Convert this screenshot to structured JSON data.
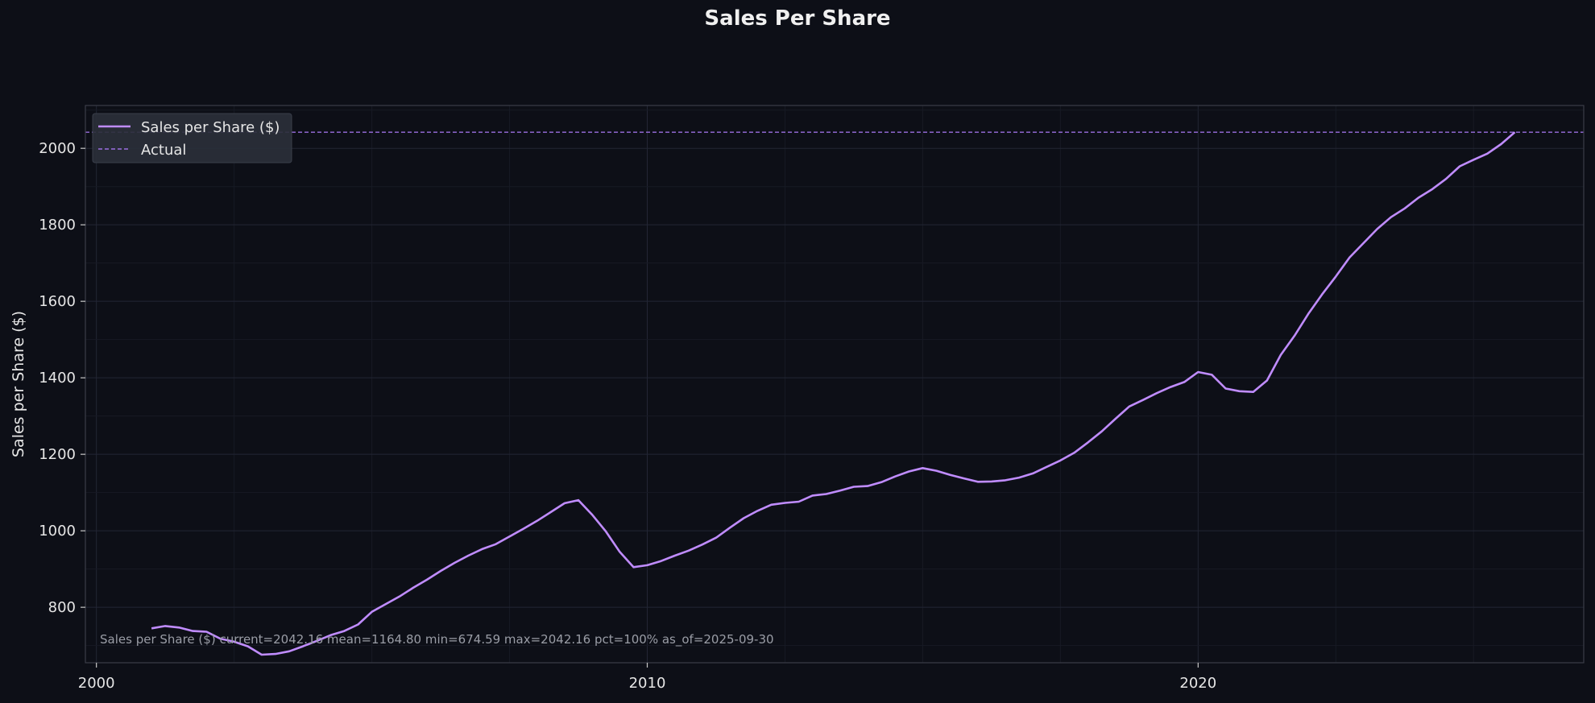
{
  "chart_data": {
    "type": "line",
    "title": "Sales Per Share",
    "xlabel": "",
    "ylabel": "Sales per Share ($)",
    "xlim": [
      1999.8,
      2027.0
    ],
    "ylim": [
      655,
      2112
    ],
    "x_ticks": [
      2000,
      2010,
      2020
    ],
    "x_tick_labels": [
      "2000",
      "2010",
      "2020"
    ],
    "y_ticks": [
      800,
      1000,
      1200,
      1400,
      1600,
      1800,
      2000
    ],
    "y_tick_labels": [
      "800",
      "1000",
      "1200",
      "1400",
      "1600",
      "1800",
      "2000"
    ],
    "grid": true,
    "legend_position": "top-left",
    "series": [
      {
        "name": "Sales per Share ($)",
        "color": "#c08cff",
        "style": "solid",
        "x": [
          2001.0,
          2001.25,
          2001.5,
          2001.75,
          2002.0,
          2002.25,
          2002.5,
          2002.75,
          2003.0,
          2003.25,
          2003.5,
          2003.75,
          2004.0,
          2004.25,
          2004.5,
          2004.75,
          2005.0,
          2005.25,
          2005.5,
          2005.75,
          2006.0,
          2006.25,
          2006.5,
          2006.75,
          2007.0,
          2007.25,
          2007.5,
          2007.75,
          2008.0,
          2008.25,
          2008.5,
          2008.75,
          2009.0,
          2009.25,
          2009.5,
          2009.75,
          2010.0,
          2010.25,
          2010.5,
          2010.75,
          2011.0,
          2011.25,
          2011.5,
          2011.75,
          2012.0,
          2012.25,
          2012.5,
          2012.75,
          2013.0,
          2013.25,
          2013.5,
          2013.75,
          2014.0,
          2014.25,
          2014.5,
          2014.75,
          2015.0,
          2015.25,
          2015.5,
          2015.75,
          2016.0,
          2016.25,
          2016.5,
          2016.75,
          2017.0,
          2017.25,
          2017.5,
          2017.75,
          2018.0,
          2018.25,
          2018.5,
          2018.75,
          2019.0,
          2019.25,
          2019.5,
          2019.75,
          2020.0,
          2020.25,
          2020.5,
          2020.75,
          2021.0,
          2021.25,
          2021.5,
          2021.75,
          2022.0,
          2022.25,
          2022.5,
          2022.75,
          2023.0,
          2023.25,
          2023.5,
          2023.75,
          2024.0,
          2024.25,
          2024.5,
          2024.75,
          2025.0,
          2025.25,
          2025.5,
          2025.75
        ],
        "y": [
          745,
          751,
          747,
          738,
          736,
          718,
          710,
          698,
          676,
          678,
          685,
          698,
          712,
          727,
          738,
          755,
          788,
          808,
          828,
          851,
          872,
          895,
          916,
          935,
          952,
          965,
          985,
          1005,
          1026,
          1049,
          1072,
          1080,
          1042,
          998,
          945,
          905,
          910,
          921,
          935,
          948,
          964,
          982,
          1008,
          1033,
          1052,
          1068,
          1073,
          1076,
          1092,
          1096,
          1105,
          1115,
          1117,
          1127,
          1142,
          1155,
          1164,
          1157,
          1146,
          1137,
          1128,
          1129,
          1132,
          1139,
          1150,
          1167,
          1184,
          1204,
          1231,
          1260,
          1293,
          1325,
          1342,
          1360,
          1376,
          1389,
          1415,
          1408,
          1372,
          1365,
          1363,
          1393,
          1460,
          1510,
          1567,
          1618,
          1665,
          1715,
          1752,
          1789,
          1820,
          1843,
          1871,
          1893,
          1920,
          1953,
          1970,
          1986,
          2011,
          2042
        ]
      },
      {
        "name": "Actual",
        "color": "#9a6fe0",
        "style": "dashed",
        "hline": 2042.16
      }
    ],
    "annotation": "Sales per Share ($)  current=2042.16  mean=1164.80  min=674.59  max=2042.16  pct=100%  as_of=2025-09-30"
  }
}
